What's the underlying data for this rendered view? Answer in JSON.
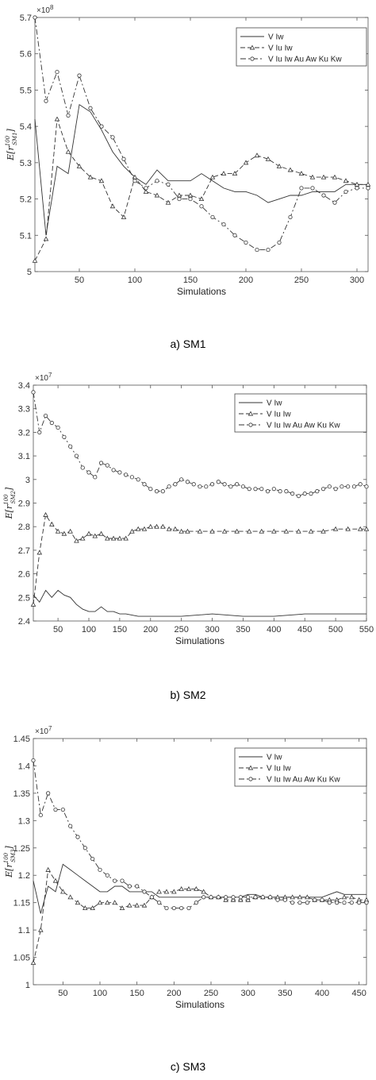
{
  "chart_data": [
    {
      "type": "line",
      "caption": "a)    SM1",
      "xlabel": "Simulations",
      "ylabel_base": "E[r",
      "ylabel_sup": "100",
      "ylabel_sub": "SM1",
      "ylabel_close": "]",
      "exponent": "×10",
      "exponent_power": "8",
      "xlim": [
        10,
        310
      ],
      "ylim": [
        5.0,
        5.7
      ],
      "xticks": [
        50,
        100,
        150,
        200,
        250,
        300
      ],
      "yticks": [
        5,
        5.1,
        5.2,
        5.3,
        5.4,
        5.5,
        5.6,
        5.7
      ],
      "legend_position": "top-right",
      "grid": false,
      "series": [
        {
          "name": "V Iw",
          "style": "solid",
          "marker": "none",
          "x": [
            10,
            20,
            30,
            40,
            50,
            60,
            70,
            80,
            90,
            100,
            110,
            120,
            130,
            140,
            150,
            160,
            170,
            180,
            190,
            200,
            210,
            220,
            230,
            240,
            250,
            260,
            270,
            280,
            290,
            300,
            310
          ],
          "y": [
            5.42,
            5.1,
            5.29,
            5.27,
            5.46,
            5.44,
            5.39,
            5.33,
            5.29,
            5.26,
            5.24,
            5.28,
            5.25,
            5.25,
            5.25,
            5.27,
            5.25,
            5.23,
            5.22,
            5.22,
            5.21,
            5.19,
            5.2,
            5.21,
            5.21,
            5.22,
            5.22,
            5.22,
            5.24,
            5.24,
            5.24
          ]
        },
        {
          "name": "V Iu Iw",
          "style": "dashed",
          "marker": "triangle",
          "x": [
            10,
            20,
            30,
            40,
            50,
            60,
            70,
            80,
            90,
            100,
            110,
            120,
            130,
            140,
            150,
            160,
            170,
            180,
            190,
            200,
            210,
            220,
            230,
            240,
            250,
            260,
            270,
            280,
            290,
            300,
            310
          ],
          "y": [
            5.03,
            5.09,
            5.42,
            5.33,
            5.29,
            5.26,
            5.25,
            5.18,
            5.15,
            5.26,
            5.22,
            5.21,
            5.19,
            5.21,
            5.21,
            5.2,
            5.26,
            5.27,
            5.27,
            5.3,
            5.32,
            5.31,
            5.29,
            5.28,
            5.27,
            5.26,
            5.26,
            5.26,
            5.25,
            5.24,
            5.24
          ]
        },
        {
          "name": "V Iu Iw Au Aw Ku Kw",
          "style": "dashdot",
          "marker": "circle",
          "x": [
            10,
            20,
            30,
            40,
            50,
            60,
            70,
            80,
            90,
            100,
            110,
            120,
            130,
            140,
            150,
            160,
            170,
            180,
            190,
            200,
            210,
            220,
            230,
            240,
            250,
            260,
            270,
            280,
            290,
            300,
            310
          ],
          "y": [
            5.7,
            5.47,
            5.55,
            5.43,
            5.54,
            5.45,
            5.4,
            5.37,
            5.31,
            5.25,
            5.23,
            5.25,
            5.24,
            5.2,
            5.2,
            5.18,
            5.15,
            5.13,
            5.1,
            5.08,
            5.06,
            5.06,
            5.08,
            5.15,
            5.23,
            5.23,
            5.21,
            5.19,
            5.22,
            5.23,
            5.23
          ]
        }
      ]
    },
    {
      "type": "line",
      "caption": "b)    SM2",
      "xlabel": "Simulations",
      "ylabel_base": "E[r",
      "ylabel_sup": "100",
      "ylabel_sub": "SM2",
      "ylabel_close": "]",
      "exponent": "×10",
      "exponent_power": "7",
      "xlim": [
        10,
        550
      ],
      "ylim": [
        2.4,
        3.4
      ],
      "xticks": [
        50,
        100,
        150,
        200,
        250,
        300,
        350,
        400,
        450,
        500,
        550
      ],
      "yticks": [
        2.4,
        2.5,
        2.6,
        2.7,
        2.8,
        2.9,
        3,
        3.1,
        3.2,
        3.3,
        3.4
      ],
      "legend_position": "top-right",
      "grid": false,
      "series": [
        {
          "name": "V Iw",
          "style": "solid",
          "marker": "none",
          "x": [
            10,
            20,
            30,
            40,
            50,
            60,
            70,
            80,
            90,
            100,
            110,
            120,
            130,
            140,
            150,
            160,
            180,
            200,
            220,
            250,
            300,
            350,
            400,
            450,
            500,
            550
          ],
          "y": [
            2.51,
            2.48,
            2.53,
            2.5,
            2.53,
            2.51,
            2.5,
            2.47,
            2.45,
            2.44,
            2.44,
            2.46,
            2.44,
            2.44,
            2.43,
            2.43,
            2.42,
            2.42,
            2.42,
            2.42,
            2.43,
            2.42,
            2.42,
            2.43,
            2.43,
            2.43
          ]
        },
        {
          "name": "V Iu Iw",
          "style": "dashed",
          "marker": "triangle",
          "x": [
            10,
            20,
            30,
            40,
            50,
            60,
            70,
            80,
            90,
            100,
            110,
            120,
            130,
            140,
            150,
            160,
            170,
            180,
            190,
            200,
            210,
            220,
            230,
            240,
            250,
            260,
            280,
            300,
            320,
            340,
            360,
            380,
            400,
            420,
            440,
            460,
            480,
            500,
            520,
            540,
            550
          ],
          "y": [
            2.47,
            2.69,
            2.85,
            2.81,
            2.78,
            2.77,
            2.78,
            2.74,
            2.75,
            2.77,
            2.76,
            2.77,
            2.75,
            2.75,
            2.75,
            2.75,
            2.78,
            2.79,
            2.79,
            2.8,
            2.8,
            2.8,
            2.79,
            2.79,
            2.78,
            2.78,
            2.78,
            2.78,
            2.78,
            2.78,
            2.78,
            2.78,
            2.78,
            2.78,
            2.78,
            2.78,
            2.78,
            2.79,
            2.79,
            2.79,
            2.79
          ]
        },
        {
          "name": "V Iu Iw Au Aw Ku Kw",
          "style": "dashdot",
          "marker": "circle",
          "x": [
            10,
            20,
            30,
            40,
            50,
            60,
            70,
            80,
            90,
            100,
            110,
            120,
            130,
            140,
            150,
            160,
            170,
            180,
            190,
            200,
            210,
            220,
            230,
            240,
            250,
            260,
            270,
            280,
            290,
            300,
            310,
            320,
            330,
            340,
            350,
            360,
            370,
            380,
            390,
            400,
            410,
            420,
            430,
            440,
            450,
            460,
            470,
            480,
            490,
            500,
            510,
            520,
            530,
            540,
            550
          ],
          "y": [
            3.37,
            3.2,
            3.27,
            3.24,
            3.22,
            3.18,
            3.14,
            3.1,
            3.05,
            3.03,
            3.01,
            3.07,
            3.06,
            3.04,
            3.03,
            3.02,
            3.01,
            3.0,
            2.98,
            2.96,
            2.95,
            2.95,
            2.97,
            2.98,
            3.0,
            2.99,
            2.98,
            2.97,
            2.97,
            2.98,
            2.99,
            2.98,
            2.97,
            2.98,
            2.97,
            2.96,
            2.96,
            2.96,
            2.95,
            2.96,
            2.95,
            2.95,
            2.94,
            2.93,
            2.94,
            2.94,
            2.95,
            2.96,
            2.97,
            2.96,
            2.97,
            2.97,
            2.97,
            2.98,
            2.97
          ]
        }
      ]
    },
    {
      "type": "line",
      "caption": "c)    SM3",
      "xlabel": "Simulations",
      "ylabel_base": "E[r",
      "ylabel_sup": "100",
      "ylabel_sub": "SM3",
      "ylabel_close": "]",
      "exponent": "×10",
      "exponent_power": "7",
      "xlim": [
        10,
        460
      ],
      "ylim": [
        1.0,
        1.45
      ],
      "xticks": [
        50,
        100,
        150,
        200,
        250,
        300,
        350,
        400,
        450
      ],
      "yticks": [
        1,
        1.05,
        1.1,
        1.15,
        1.2,
        1.25,
        1.3,
        1.35,
        1.4,
        1.45
      ],
      "legend_position": "top-right",
      "grid": false,
      "series": [
        {
          "name": "V Iw",
          "style": "solid",
          "marker": "none",
          "x": [
            10,
            20,
            30,
            40,
            50,
            60,
            70,
            80,
            90,
            100,
            110,
            120,
            130,
            140,
            150,
            160,
            170,
            180,
            190,
            200,
            210,
            220,
            230,
            240,
            250,
            260,
            270,
            280,
            290,
            300,
            310,
            320,
            330,
            340,
            350,
            360,
            370,
            380,
            390,
            400,
            410,
            420,
            430,
            440,
            450,
            460
          ],
          "y": [
            1.19,
            1.13,
            1.18,
            1.17,
            1.22,
            1.21,
            1.2,
            1.19,
            1.18,
            1.17,
            1.17,
            1.18,
            1.18,
            1.17,
            1.17,
            1.17,
            1.17,
            1.16,
            1.16,
            1.16,
            1.16,
            1.16,
            1.16,
            1.16,
            1.16,
            1.16,
            1.16,
            1.16,
            1.16,
            1.165,
            1.165,
            1.16,
            1.16,
            1.16,
            1.16,
            1.16,
            1.16,
            1.16,
            1.16,
            1.16,
            1.165,
            1.17,
            1.165,
            1.165,
            1.165,
            1.165
          ]
        },
        {
          "name": "V Iu Iw",
          "style": "dashed",
          "marker": "triangle",
          "x": [
            10,
            20,
            30,
            40,
            50,
            60,
            70,
            80,
            90,
            100,
            110,
            120,
            130,
            140,
            150,
            160,
            170,
            180,
            190,
            200,
            210,
            220,
            230,
            240,
            250,
            260,
            270,
            280,
            290,
            300,
            310,
            320,
            330,
            340,
            350,
            360,
            370,
            380,
            390,
            400,
            410,
            420,
            430,
            440,
            450,
            460
          ],
          "y": [
            1.04,
            1.1,
            1.21,
            1.19,
            1.17,
            1.16,
            1.15,
            1.14,
            1.14,
            1.15,
            1.15,
            1.15,
            1.14,
            1.145,
            1.145,
            1.145,
            1.16,
            1.17,
            1.17,
            1.17,
            1.175,
            1.175,
            1.175,
            1.17,
            1.16,
            1.16,
            1.155,
            1.155,
            1.155,
            1.155,
            1.16,
            1.16,
            1.16,
            1.16,
            1.16,
            1.16,
            1.16,
            1.16,
            1.155,
            1.155,
            1.155,
            1.155,
            1.16,
            1.16,
            1.155,
            1.155
          ]
        },
        {
          "name": "V Iu Iw Au Aw Ku Kw",
          "style": "dashdot",
          "marker": "circle",
          "x": [
            10,
            20,
            30,
            40,
            50,
            60,
            70,
            80,
            90,
            100,
            110,
            120,
            130,
            140,
            150,
            160,
            170,
            180,
            190,
            200,
            210,
            220,
            230,
            240,
            250,
            260,
            270,
            280,
            290,
            300,
            310,
            320,
            330,
            340,
            350,
            360,
            370,
            380,
            390,
            400,
            410,
            420,
            430,
            440,
            450,
            460
          ],
          "y": [
            1.41,
            1.31,
            1.35,
            1.32,
            1.32,
            1.29,
            1.27,
            1.25,
            1.23,
            1.21,
            1.2,
            1.19,
            1.19,
            1.18,
            1.18,
            1.17,
            1.16,
            1.15,
            1.14,
            1.14,
            1.14,
            1.14,
            1.15,
            1.16,
            1.16,
            1.16,
            1.16,
            1.16,
            1.16,
            1.16,
            1.16,
            1.16,
            1.16,
            1.155,
            1.155,
            1.15,
            1.15,
            1.15,
            1.155,
            1.155,
            1.15,
            1.15,
            1.15,
            1.15,
            1.15,
            1.15
          ]
        }
      ]
    }
  ]
}
